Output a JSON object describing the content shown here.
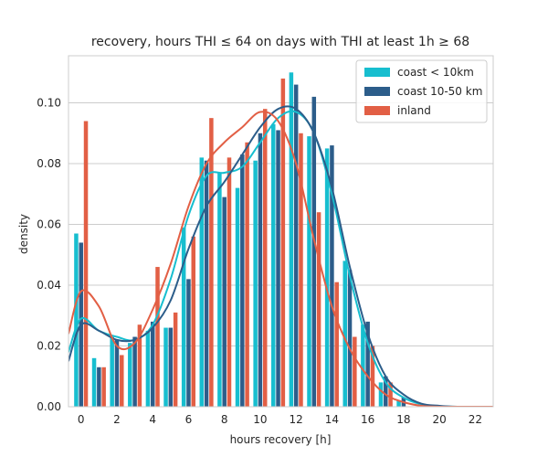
{
  "chart_data": {
    "type": "bar",
    "title": "recovery, hours THI ≤ 64 on days with THI at least 1h ≥ 68",
    "xlabel": "hours recovery [h]",
    "ylabel": "density",
    "xlim": [
      -0.7,
      23
    ],
    "ylim": [
      0,
      0.1155
    ],
    "x_ticks": [
      0,
      2,
      4,
      6,
      8,
      10,
      12,
      14,
      16,
      18,
      20,
      22
    ],
    "x_tick_labels": [
      "0",
      "2",
      "4",
      "6",
      "8",
      "10",
      "12",
      "14",
      "16",
      "18",
      "20",
      "22"
    ],
    "y_ticks": [
      0.0,
      0.02,
      0.04,
      0.06,
      0.08,
      0.1
    ],
    "y_tick_labels": [
      "0.00",
      "0.02",
      "0.04",
      "0.06",
      "0.08",
      "0.10"
    ],
    "grid": "horizontal",
    "legend_position": "top-right",
    "categories": [
      0,
      1,
      2,
      3,
      4,
      5,
      6,
      7,
      8,
      9,
      10,
      11,
      12,
      13,
      14,
      15,
      16,
      17,
      18
    ],
    "series": [
      {
        "name": "coast < 10km",
        "color": "#17becf",
        "values": [
          0.057,
          0.016,
          0.023,
          0.021,
          0.025,
          0.026,
          0.059,
          0.082,
          0.077,
          0.072,
          0.081,
          0.093,
          0.11,
          0.089,
          0.085,
          0.048,
          0.027,
          0.008,
          0.002
        ]
      },
      {
        "name": "coast 10-50 km",
        "color": "#2c5d8a",
        "values": [
          0.054,
          0.013,
          0.022,
          0.023,
          0.028,
          0.026,
          0.042,
          0.081,
          0.069,
          0.083,
          0.09,
          0.091,
          0.106,
          0.102,
          0.086,
          0.045,
          0.028,
          0.01,
          0.003
        ]
      },
      {
        "name": "inland",
        "color": "#e25f45",
        "values": [
          0.094,
          0.013,
          0.017,
          0.027,
          0.046,
          0.031,
          0.056,
          0.095,
          0.082,
          0.087,
          0.098,
          0.108,
          0.09,
          0.064,
          0.041,
          0.023,
          0.02,
          0.008,
          0.0
        ]
      }
    ],
    "kde_x": [
      -0.7,
      0,
      1,
      2,
      3,
      4,
      5,
      6,
      7,
      8,
      9,
      10,
      11,
      12,
      13,
      14,
      15,
      16,
      17,
      18,
      19,
      20,
      21,
      22,
      23
    ],
    "kde": [
      {
        "name": "coast < 10km",
        "color": "#17becf",
        "y": [
          0.018,
          0.029,
          0.025,
          0.023,
          0.022,
          0.027,
          0.042,
          0.063,
          0.076,
          0.077,
          0.079,
          0.087,
          0.095,
          0.097,
          0.09,
          0.07,
          0.043,
          0.021,
          0.008,
          0.003,
          0.0008,
          0.0002,
          0.0,
          0.0,
          0.0
        ]
      },
      {
        "name": "coast 10-50 km",
        "color": "#2c5d8a",
        "y": [
          0.015,
          0.027,
          0.025,
          0.022,
          0.022,
          0.026,
          0.035,
          0.052,
          0.066,
          0.074,
          0.083,
          0.092,
          0.098,
          0.098,
          0.09,
          0.072,
          0.046,
          0.024,
          0.01,
          0.004,
          0.001,
          0.0003,
          0.0,
          0.0,
          0.0
        ]
      },
      {
        "name": "inland",
        "color": "#e25f45",
        "y": [
          0.024,
          0.038,
          0.033,
          0.02,
          0.021,
          0.032,
          0.047,
          0.066,
          0.08,
          0.087,
          0.092,
          0.097,
          0.094,
          0.08,
          0.055,
          0.033,
          0.019,
          0.01,
          0.004,
          0.0015,
          0.0003,
          0.0,
          0.0,
          0.0,
          0.0
        ]
      }
    ]
  }
}
